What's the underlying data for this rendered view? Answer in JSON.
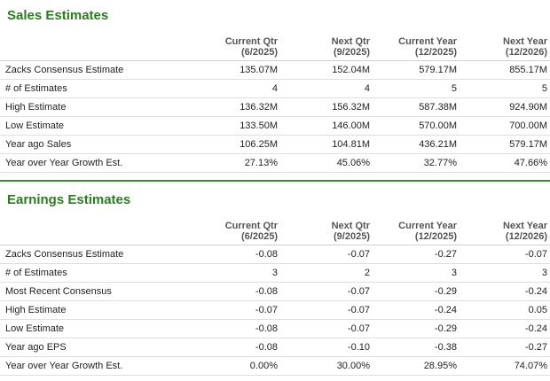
{
  "sales": {
    "title": "Sales Estimates",
    "headers": [
      {
        "line1": "Current Qtr",
        "line2": "(6/2025)"
      },
      {
        "line1": "Next Qtr",
        "line2": "(9/2025)"
      },
      {
        "line1": "Current Year",
        "line2": "(12/2025)"
      },
      {
        "line1": "Next Year",
        "line2": "(12/2026)"
      }
    ],
    "rows": [
      {
        "label": "Zacks Consensus Estimate",
        "values": [
          "135.07M",
          "152.04M",
          "579.17M",
          "855.17M"
        ]
      },
      {
        "label": "# of Estimates",
        "values": [
          "4",
          "4",
          "5",
          "5"
        ]
      },
      {
        "label": "High Estimate",
        "values": [
          "136.32M",
          "156.32M",
          "587.38M",
          "924.90M"
        ]
      },
      {
        "label": "Low Estimate",
        "values": [
          "133.50M",
          "146.00M",
          "570.00M",
          "700.00M"
        ]
      },
      {
        "label": "Year ago Sales",
        "values": [
          "106.25M",
          "104.81M",
          "436.21M",
          "579.17M"
        ]
      },
      {
        "label": "Year over Year Growth Est.",
        "values": [
          "27.13%",
          "45.06%",
          "32.77%",
          "47.66%"
        ]
      }
    ]
  },
  "earnings": {
    "title": "Earnings Estimates",
    "headers": [
      {
        "line1": "Current Qtr",
        "line2": "(6/2025)"
      },
      {
        "line1": "Next Qtr",
        "line2": "(9/2025)"
      },
      {
        "line1": "Current Year",
        "line2": "(12/2025)"
      },
      {
        "line1": "Next Year",
        "line2": "(12/2026)"
      }
    ],
    "rows": [
      {
        "label": "Zacks Consensus Estimate",
        "values": [
          "-0.08",
          "-0.07",
          "-0.27",
          "-0.07"
        ]
      },
      {
        "label": "# of Estimates",
        "values": [
          "3",
          "2",
          "3",
          "3"
        ]
      },
      {
        "label": "Most Recent Consensus",
        "values": [
          "-0.08",
          "-0.07",
          "-0.29",
          "-0.24"
        ]
      },
      {
        "label": "High Estimate",
        "values": [
          "-0.07",
          "-0.07",
          "-0.24",
          "0.05"
        ]
      },
      {
        "label": "Low Estimate",
        "values": [
          "-0.08",
          "-0.07",
          "-0.29",
          "-0.24"
        ]
      },
      {
        "label": "Year ago EPS",
        "values": [
          "-0.08",
          "-0.10",
          "-0.38",
          "-0.27"
        ]
      },
      {
        "label": "Year over Year Growth Est.",
        "values": [
          "0.00%",
          "30.00%",
          "28.95%",
          "74.07%"
        ]
      }
    ]
  },
  "colors": {
    "title_green": "#2a7d1f",
    "divider_green": "#3a8a2a",
    "row_border": "#dedede"
  }
}
